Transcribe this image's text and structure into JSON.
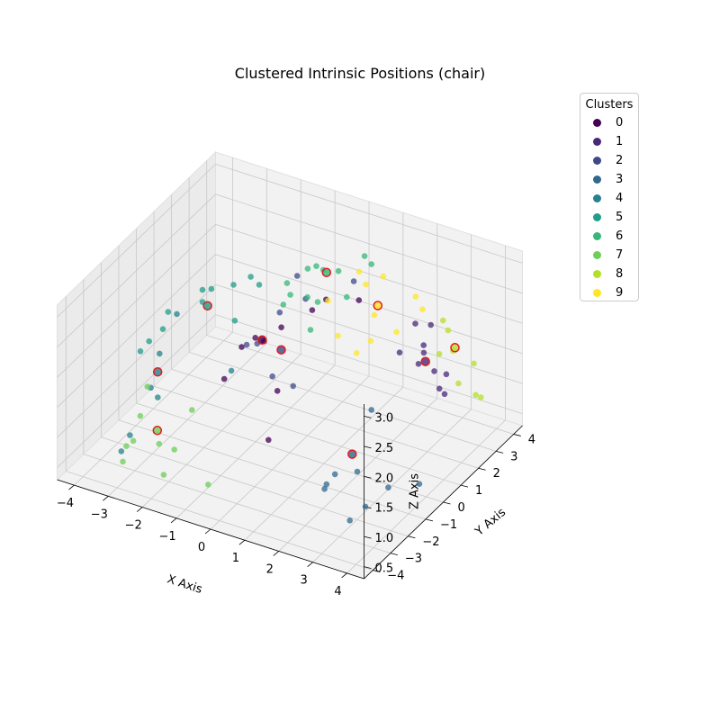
{
  "chart_data": {
    "type": "scatter3d",
    "title": "Clustered Intrinsic Positions (chair)",
    "xlabel": "X Axis",
    "ylabel": "Y Axis",
    "zlabel": "Z Axis",
    "xlim": [
      -4.5,
      4.5
    ],
    "ylim": [
      -4.5,
      4.5
    ],
    "zlim": [
      0.3,
      3.2
    ],
    "xticks": [
      "−4",
      "−3",
      "−2",
      "−1",
      "0",
      "1",
      "2",
      "3",
      "4"
    ],
    "yticks": [
      "−4",
      "−3",
      "−2",
      "−1",
      "0",
      "1",
      "2",
      "3",
      "4"
    ],
    "zticks": [
      "0.5",
      "1.0",
      "1.5",
      "2.0",
      "2.5",
      "3.0"
    ],
    "legend": {
      "title": "Clusters",
      "entries": [
        "0",
        "1",
        "2",
        "3",
        "4",
        "5",
        "6",
        "7",
        "8",
        "9"
      ],
      "colors": [
        "#440154",
        "#482878",
        "#3e4989",
        "#31688e",
        "#26828e",
        "#1f9e89",
        "#35b779",
        "#6ece58",
        "#b5de2b",
        "#fde725"
      ],
      "placement": "top-right"
    },
    "grid": true,
    "centroid_marker": "red ring",
    "series": [
      {
        "cluster": 0,
        "points": [
          [
            -0.5,
            -0.5,
            2.2
          ],
          [
            -0.3,
            0.1,
            2.3
          ],
          [
            0.4,
            0.5,
            2.6
          ],
          [
            0.6,
            0.9,
            2.7
          ],
          [
            -1.0,
            -0.8,
            2.1
          ],
          [
            0.1,
            -0.9,
            1.6
          ],
          [
            -1.2,
            -1.4,
            1.7
          ],
          [
            0.2,
            -1.6,
            1.0
          ],
          [
            1.2,
            1.6,
            2.6
          ],
          [
            -0.7,
            -0.6,
            2.25
          ]
        ]
      },
      {
        "cluster": 1,
        "points": [
          [
            2.6,
            1.2,
            2.1
          ],
          [
            3.1,
            1.6,
            2.2
          ],
          [
            3.0,
            2.2,
            2.35
          ],
          [
            2.7,
            1.9,
            2.4
          ],
          [
            3.0,
            1.8,
            2.0
          ],
          [
            3.0,
            1.5,
            1.9
          ],
          [
            3.1,
            2.2,
            1.6
          ],
          [
            3.3,
            2.5,
            1.5
          ],
          [
            3.2,
            2.3,
            1.3
          ],
          [
            3.3,
            2.4,
            1.2
          ]
        ]
      },
      {
        "cluster": 2,
        "points": [
          [
            -0.4,
            0.2,
            2.5
          ],
          [
            0.0,
            0.9,
            2.6
          ],
          [
            -0.8,
            -0.3,
            2.05
          ],
          [
            -0.2,
            -0.6,
            1.7
          ],
          [
            0.2,
            -0.2,
            1.5
          ],
          [
            1.0,
            1.7,
            2.85
          ],
          [
            -0.3,
            1.0,
            2.9
          ],
          [
            -0.8,
            -0.9,
            2.2
          ]
        ]
      },
      {
        "cluster": 3,
        "points": [
          [
            2.6,
            -0.4,
            1.6
          ],
          [
            2.6,
            -1.2,
            0.8
          ],
          [
            1.8,
            -1.4,
            0.5
          ],
          [
            2.0,
            -1.9,
            0.6
          ],
          [
            3.3,
            -0.8,
            0.55
          ],
          [
            3.3,
            -2.1,
            0.6
          ],
          [
            3.0,
            -2.4,
            0.4
          ],
          [
            3.9,
            -0.2,
            0.55
          ],
          [
            2.1,
            -1.5,
            0.75
          ]
        ]
      },
      {
        "cluster": 4,
        "points": [
          [
            -2.9,
            -0.8,
            2.3
          ],
          [
            -3.2,
            -1.2,
            1.7
          ],
          [
            -3.3,
            -1.5,
            1.2
          ],
          [
            -3.2,
            -1.3,
            1.0
          ],
          [
            -3.5,
            -2.3,
            0.6
          ],
          [
            -3.6,
            -2.6,
            0.4
          ],
          [
            -1.3,
            -0.8,
            1.65
          ]
        ]
      },
      {
        "cluster": 5,
        "points": [
          [
            -2.3,
            0.0,
            2.6
          ],
          [
            -2.2,
            -0.7,
            2.6
          ],
          [
            -3.0,
            -1.1,
            2.4
          ],
          [
            -3.0,
            -1.4,
            2.2
          ],
          [
            -3.3,
            -1.6,
            2.0
          ],
          [
            -3.4,
            -1.9,
            1.9
          ],
          [
            -2.2,
            -0.7,
            2.8
          ],
          [
            -1.2,
            -0.8,
            2.5
          ],
          [
            -1.0,
            0.2,
            2.85
          ],
          [
            -1.3,
            0.3,
            2.9
          ],
          [
            -1.7,
            0.1,
            2.75
          ]
        ]
      },
      {
        "cluster": 6,
        "points": [
          [
            0.0,
            1.9,
            2.8
          ],
          [
            0.5,
            1.8,
            2.9
          ],
          [
            0.2,
            1.2,
            2.5
          ],
          [
            -0.3,
            1.6,
            2.85
          ],
          [
            -0.7,
            1.2,
            2.65
          ],
          [
            -0.5,
            1.0,
            2.55
          ],
          [
            1.0,
            1.3,
            2.7
          ],
          [
            0.8,
            2.7,
            2.95
          ],
          [
            1.0,
            2.7,
            2.85
          ],
          [
            0.4,
            0.4,
            2.3
          ],
          [
            -0.1,
            1.7,
            2.9
          ],
          [
            0.0,
            1.0,
            2.6
          ],
          [
            -0.5,
            0.6,
            2.5
          ]
        ]
      },
      {
        "cluster": 7,
        "points": [
          [
            -3.4,
            -1.5,
            1.2
          ],
          [
            -3.3,
            -2.1,
            0.9
          ],
          [
            -3.3,
            -2.5,
            0.6
          ],
          [
            -3.4,
            -2.7,
            0.55
          ],
          [
            -3.4,
            -2.9,
            0.35
          ],
          [
            -2.2,
            -2.3,
            0.6
          ],
          [
            -2.2,
            -2.9,
            0.35
          ],
          [
            -1.0,
            -2.7,
            0.35
          ],
          [
            -2.3,
            -1.1,
            0.9
          ],
          [
            -2.8,
            -2.0,
            0.5
          ]
        ]
      },
      {
        "cluster": 8,
        "points": [
          [
            3.1,
            2.7,
            2.3
          ],
          [
            3.3,
            2.6,
            2.2
          ],
          [
            3.3,
            2.1,
            1.95
          ],
          [
            3.6,
            2.3,
            2.0
          ],
          [
            3.8,
            3.1,
            1.6
          ],
          [
            3.5,
            2.8,
            1.3
          ],
          [
            3.8,
            3.2,
            1.05
          ],
          [
            3.9,
            3.3,
            1.0
          ]
        ]
      },
      {
        "cluster": 9,
        "points": [
          [
            0.9,
            2.2,
            2.85
          ],
          [
            1.2,
            2.0,
            2.75
          ],
          [
            1.4,
            2.6,
            2.75
          ],
          [
            1.6,
            1.7,
            2.4
          ],
          [
            2.3,
            2.7,
            2.55
          ],
          [
            2.2,
            1.8,
            2.2
          ],
          [
            2.6,
            2.5,
            2.45
          ],
          [
            1.0,
            0.8,
            2.2
          ],
          [
            1.6,
            0.7,
            2.05
          ],
          [
            1.7,
            1.3,
            2.1
          ],
          [
            0.4,
            1.4,
            2.5
          ]
        ]
      }
    ],
    "centroids": [
      {
        "cluster": 0,
        "point": [
          -0.5,
          -0.6,
          2.25
        ]
      },
      {
        "cluster": 1,
        "point": [
          3.1,
          1.7,
          1.9
        ]
      },
      {
        "cluster": 2,
        "point": [
          -0.2,
          -0.1,
          2.0
        ]
      },
      {
        "cluster": 3,
        "point": [
          2.5,
          -1.3,
          1.1
        ]
      },
      {
        "cluster": 4,
        "point": [
          -3.1,
          -1.5,
          1.5
        ]
      },
      {
        "cluster": 5,
        "point": [
          -2.0,
          -0.8,
          2.6
        ]
      },
      {
        "cluster": 6,
        "point": [
          0.2,
          1.7,
          2.85
        ]
      },
      {
        "cluster": 7,
        "point": [
          -2.8,
          -2.1,
          0.75
        ]
      },
      {
        "cluster": 8,
        "point": [
          3.5,
          2.6,
          1.95
        ]
      },
      {
        "cluster": 9,
        "point": [
          1.6,
          1.9,
          2.5
        ]
      }
    ]
  }
}
